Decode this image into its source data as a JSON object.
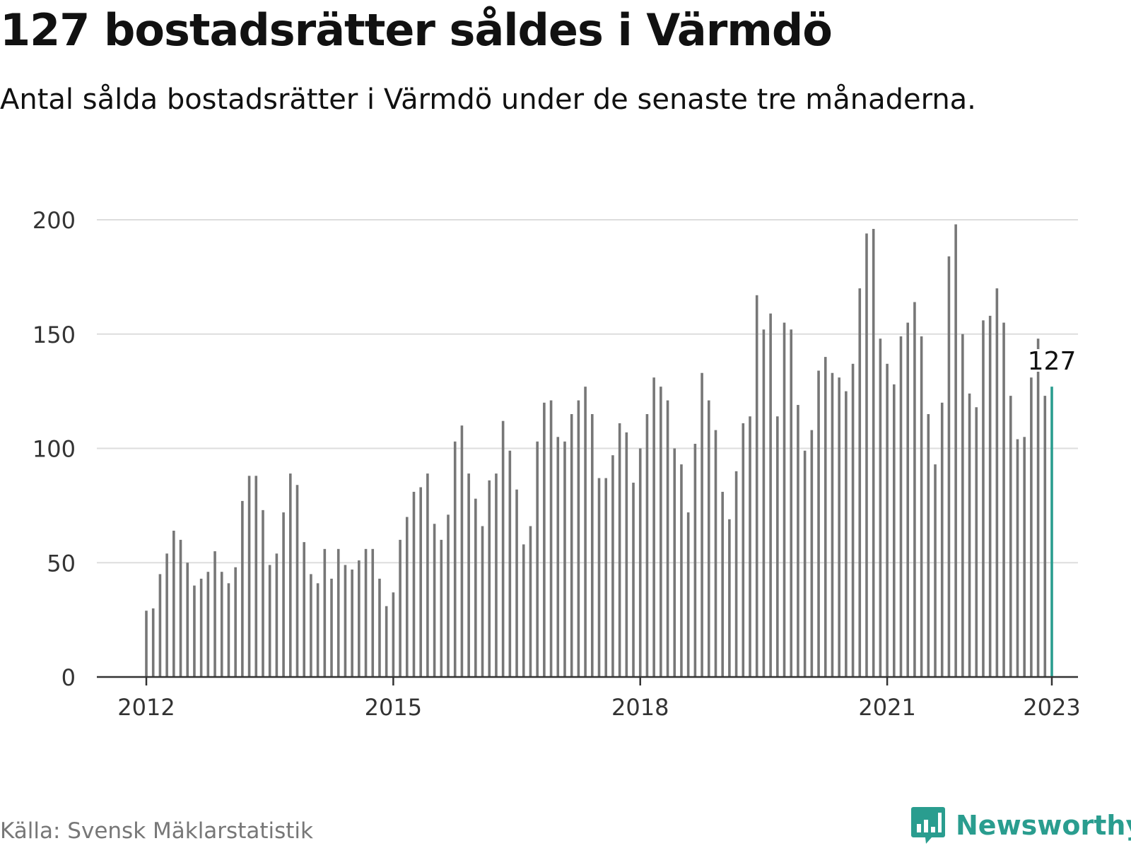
{
  "header": {
    "title": "127 bostadsrätter såldes i Värmdö",
    "subtitle": "Antal sålda bostadsrätter i Värmdö under de senaste tre månaderna."
  },
  "footer": {
    "source": "Källa: Svensk Mäklarstatistik",
    "logo_text": "Newsworthy",
    "logo_icon": "bar-chart-speech-bubble-icon"
  },
  "colors": {
    "bar": "#777777",
    "highlight": "#2a9d8f",
    "grid": "#dddddd",
    "axis": "#333333",
    "brand": "#2a9d8f"
  },
  "chart_data": {
    "type": "bar",
    "title": "127 bostadsrätter såldes i Värmdö",
    "subtitle": "Antal sålda bostadsrätter i Värmdö under de senaste tre månaderna.",
    "xlabel": "",
    "ylabel": "",
    "ylim": [
      0,
      200
    ],
    "yticks": [
      0,
      50,
      100,
      150,
      200
    ],
    "xtick_labels": [
      "2012",
      "2015",
      "2018",
      "2021",
      "2023"
    ],
    "grid": true,
    "x_start": "2012-01",
    "x_end": "2023-01",
    "highlight_label": "127",
    "values": [
      29,
      30,
      45,
      54,
      64,
      60,
      50,
      40,
      43,
      46,
      55,
      46,
      41,
      48,
      77,
      88,
      88,
      73,
      49,
      54,
      72,
      89,
      84,
      59,
      45,
      41,
      56,
      43,
      56,
      49,
      47,
      51,
      56,
      56,
      43,
      31,
      37,
      60,
      70,
      81,
      83,
      89,
      67,
      60,
      71,
      103,
      110,
      89,
      78,
      66,
      86,
      89,
      112,
      99,
      82,
      58,
      66,
      103,
      120,
      121,
      105,
      103,
      115,
      121,
      127,
      115,
      87,
      87,
      97,
      111,
      107,
      85,
      100,
      115,
      131,
      127,
      121,
      100,
      93,
      72,
      102,
      133,
      121,
      108,
      81,
      69,
      90,
      111,
      114,
      167,
      152,
      159,
      114,
      155,
      152,
      119,
      99,
      108,
      134,
      140,
      133,
      131,
      125,
      137,
      170,
      194,
      196,
      148,
      137,
      128,
      149,
      155,
      164,
      149,
      115,
      93,
      120,
      184,
      198,
      150,
      124,
      118,
      156,
      158,
      170,
      155,
      123,
      104,
      105,
      131,
      148,
      123,
      127
    ]
  }
}
